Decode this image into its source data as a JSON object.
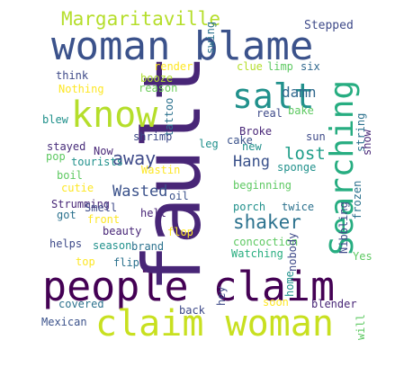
{
  "colors": {
    "background": "#ffffff",
    "palette": [
      "#440154",
      "#482677",
      "#3b528b",
      "#2c728e",
      "#21918c",
      "#28ae80",
      "#5ec962",
      "#addc30",
      "#fde725"
    ]
  },
  "words": [
    {
      "text": "people claim",
      "color": "#440154"
    },
    {
      "text": "fault",
      "color": "#482677"
    },
    {
      "text": "woman blame",
      "color": "#3b528b"
    },
    {
      "text": "claim woman",
      "color": "#c8e020"
    },
    {
      "text": "know",
      "color": "#b5de2b"
    },
    {
      "text": "Searching",
      "color": "#27ad81"
    },
    {
      "text": "salt",
      "color": "#21918c"
    },
    {
      "text": "Margaritaville",
      "color": "#b5de2b"
    },
    {
      "text": "shaker",
      "color": "#2c728e"
    },
    {
      "text": "away",
      "color": "#3e4a89"
    },
    {
      "text": "lost",
      "color": "#1f9e89"
    },
    {
      "text": "Hang",
      "color": "#3b528b"
    },
    {
      "text": "damn",
      "color": "#31688e"
    },
    {
      "text": "Wasted",
      "color": "#3b528b"
    },
    {
      "text": "Stepped",
      "color": "#3e4a89"
    },
    {
      "text": "swing",
      "color": "#2c728e"
    },
    {
      "text": "render",
      "color": "#fde725"
    },
    {
      "text": "clue",
      "color": "#b5de2b"
    },
    {
      "text": "limp",
      "color": "#5ec962"
    },
    {
      "text": "six",
      "color": "#31688e"
    },
    {
      "text": "think",
      "color": "#3e4a89"
    },
    {
      "text": "booze",
      "color": "#addc30"
    },
    {
      "text": "reason",
      "color": "#6ccd5a"
    },
    {
      "text": "Nothing",
      "color": "#fde725"
    },
    {
      "text": "tattoo",
      "color": "#2c728e"
    },
    {
      "text": "real",
      "color": "#3e4a89"
    },
    {
      "text": "bake",
      "color": "#5ec962"
    },
    {
      "text": "blew",
      "color": "#21918c"
    },
    {
      "text": "Broke",
      "color": "#482677"
    },
    {
      "text": "sun",
      "color": "#3e4a89"
    },
    {
      "text": "string",
      "color": "#2c728e"
    },
    {
      "text": "show",
      "color": "#482677"
    },
    {
      "text": "cake",
      "color": "#3b528b"
    },
    {
      "text": "stayed",
      "color": "#472c7a"
    },
    {
      "text": "Now",
      "color": "#482677"
    },
    {
      "text": "shrimp",
      "color": "#3e4a89"
    },
    {
      "text": "leg",
      "color": "#21918c"
    },
    {
      "text": "new",
      "color": "#21918c"
    },
    {
      "text": "pop",
      "color": "#5ec962"
    },
    {
      "text": "tourists",
      "color": "#21918c"
    },
    {
      "text": "Wastin",
      "color": "#fde725"
    },
    {
      "text": "sponge",
      "color": "#21918c"
    },
    {
      "text": "boil",
      "color": "#5ec962"
    },
    {
      "text": "Strumming",
      "color": "#482677"
    },
    {
      "text": "cutie",
      "color": "#fde725"
    },
    {
      "text": "oil",
      "color": "#3b528b"
    },
    {
      "text": "beginning",
      "color": "#5ec962"
    },
    {
      "text": "twice",
      "color": "#2c728e"
    },
    {
      "text": "frozen",
      "color": "#2c728e"
    },
    {
      "text": "Smell",
      "color": "#3e4a89"
    },
    {
      "text": "got",
      "color": "#2c728e"
    },
    {
      "text": "front",
      "color": "#fde725"
    },
    {
      "text": "hell",
      "color": "#482677"
    },
    {
      "text": "porch",
      "color": "#21918c"
    },
    {
      "text": "Nibbling",
      "color": "#3e4a89"
    },
    {
      "text": "beauty",
      "color": "#482677"
    },
    {
      "text": "flop",
      "color": "#fde725"
    },
    {
      "text": "helps",
      "color": "#3e4a89"
    },
    {
      "text": "season",
      "color": "#21918c"
    },
    {
      "text": "brand",
      "color": "#2c728e"
    },
    {
      "text": "concoction",
      "color": "#5ec962"
    },
    {
      "text": "Watching",
      "color": "#28ae80"
    },
    {
      "text": "nobody",
      "color": "#3e4a89"
    },
    {
      "text": "Yes",
      "color": "#5ec962"
    },
    {
      "text": "top",
      "color": "#fde725"
    },
    {
      "text": "flip",
      "color": "#2c728e"
    },
    {
      "text": "home",
      "color": "#21918c"
    },
    {
      "text": "hey",
      "color": "#3e4a89"
    },
    {
      "text": "soon",
      "color": "#fde725"
    },
    {
      "text": "covered",
      "color": "#2c728e"
    },
    {
      "text": "back",
      "color": "#3e4a89"
    },
    {
      "text": "blender",
      "color": "#482677"
    },
    {
      "text": "Mexican",
      "color": "#3b528b"
    },
    {
      "text": "will",
      "color": "#5ec962"
    }
  ]
}
